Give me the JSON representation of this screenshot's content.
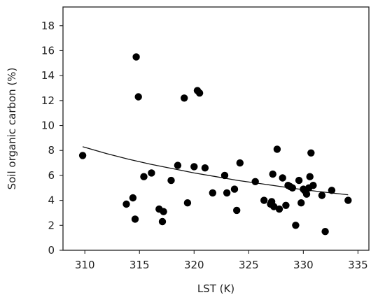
{
  "chart_data": {
    "type": "scatter",
    "title": "",
    "xlabel": "LST (K)",
    "ylabel": "Soil organic carbon (%)",
    "xlim": [
      308,
      336
    ],
    "ylim": [
      0,
      19.5
    ],
    "xticks": [
      310,
      315,
      320,
      325,
      330,
      335
    ],
    "yticks": [
      0,
      2,
      4,
      6,
      8,
      10,
      12,
      14,
      16,
      18
    ],
    "grid": false,
    "legend": "none",
    "colors": {
      "points": "#000000",
      "line": "#111111",
      "axes": "#222222"
    },
    "series": [
      {
        "kind": "points",
        "x": [
          309.8,
          313.8,
          314.4,
          314.6,
          314.7,
          314.9,
          315.4,
          316.1,
          316.8,
          317.1,
          317.2,
          317.9,
          318.5,
          319.1,
          319.4,
          320.0,
          320.3,
          320.5,
          321.0,
          321.7,
          322.8,
          323.0,
          323.7,
          323.9,
          324.2,
          325.6,
          326.4,
          327.0,
          327.1,
          327.2,
          327.3,
          327.6,
          327.8,
          328.1,
          328.4,
          328.6,
          328.8,
          329.0,
          329.3,
          329.6,
          329.8,
          330.0,
          330.1,
          330.3,
          330.5,
          330.6,
          330.7,
          330.9,
          331.7,
          332.0,
          332.6,
          334.1
        ],
        "y": [
          7.6,
          3.7,
          4.2,
          2.5,
          15.5,
          12.3,
          5.9,
          6.2,
          3.3,
          2.3,
          3.1,
          5.6,
          6.8,
          12.2,
          3.8,
          6.7,
          12.8,
          12.6,
          6.6,
          4.6,
          6.0,
          4.6,
          4.9,
          3.2,
          7.0,
          5.5,
          4.0,
          3.7,
          3.9,
          6.1,
          3.5,
          8.1,
          3.3,
          5.8,
          3.6,
          5.2,
          5.1,
          5.0,
          2.0,
          5.6,
          3.8,
          4.9,
          4.8,
          4.5,
          5.0,
          5.9,
          7.8,
          5.2,
          4.4,
          1.5,
          4.8,
          4.0
        ]
      },
      {
        "kind": "trend",
        "x": [
          309.8,
          312,
          314,
          316,
          318,
          320,
          322,
          324,
          326,
          328,
          330,
          332,
          334.1
        ],
        "y": [
          8.3,
          7.75,
          7.3,
          6.9,
          6.55,
          6.2,
          5.9,
          5.6,
          5.35,
          5.1,
          4.85,
          4.65,
          4.45
        ]
      }
    ]
  }
}
